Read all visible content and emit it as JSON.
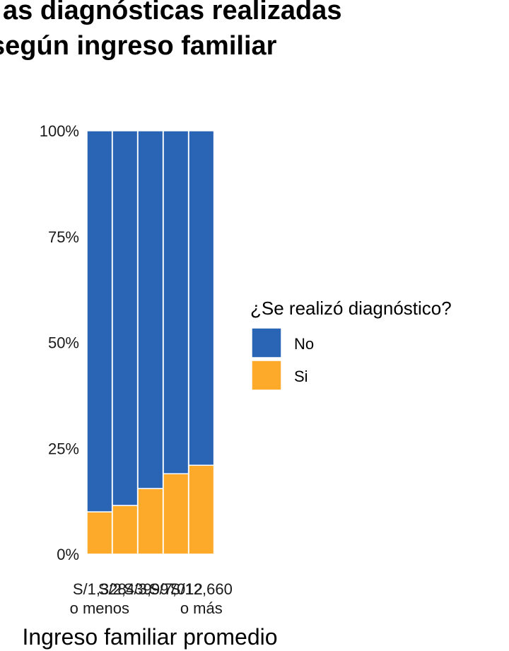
{
  "title_lines": [
    "as diagnósticas realizadas",
    "según ingreso familiar"
  ],
  "chart_data": {
    "type": "bar",
    "stacked": true,
    "normalized": true,
    "categories": [
      [
        "S/1,328",
        "o menos"
      ],
      [
        "S/2,439"
      ],
      [
        "S/3,997"
      ],
      [
        "S/7,012"
      ],
      [
        "S/12,660",
        "o más"
      ]
    ],
    "series": [
      {
        "name": "No",
        "color": "#2A64B5",
        "values": [
          0.9,
          0.885,
          0.845,
          0.81,
          0.79
        ]
      },
      {
        "name": "Si",
        "color": "#FDAA2A",
        "values": [
          0.1,
          0.115,
          0.155,
          0.19,
          0.21
        ]
      }
    ],
    "yticks": [
      "0%",
      "25%",
      "50%",
      "75%",
      "100%"
    ],
    "ylim": [
      0,
      1
    ],
    "xlabel": "Ingreso familiar promedio",
    "legend_title": "¿Se realizó diagnóstico?",
    "legend_position": "right"
  }
}
